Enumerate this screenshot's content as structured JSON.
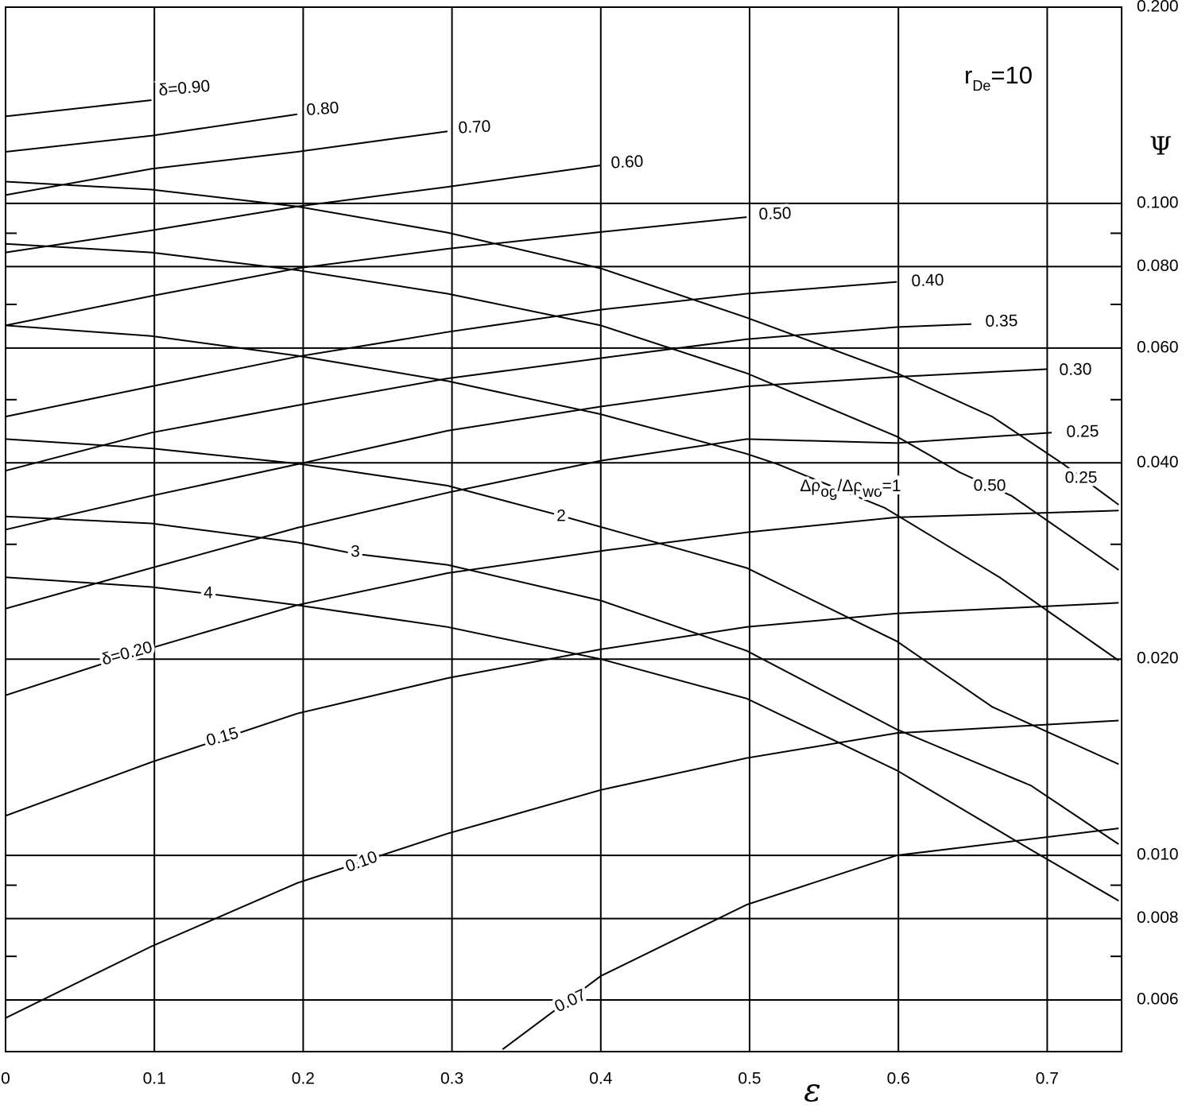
{
  "chart_data": {
    "type": "line",
    "x_label": "ε",
    "y_label": "Ψ",
    "annotation": [
      "r",
      "De",
      "=10"
    ],
    "xlim": [
      0,
      0.75
    ],
    "ylim": [
      0.005,
      0.2
    ],
    "log_y": true,
    "grid": true,
    "xticks": [
      0,
      0.1,
      0.2,
      0.3,
      0.4,
      0.5,
      0.6,
      0.7
    ],
    "yticks": [
      {
        "value": 0.2,
        "label": "0.200"
      },
      {
        "value": 0.1,
        "label": "0.100"
      },
      {
        "value": 0.08,
        "label": "0.080"
      },
      {
        "value": 0.06,
        "label": "0.060"
      },
      {
        "value": 0.04,
        "label": "0.040"
      },
      {
        "value": 0.02,
        "label": "0.020"
      },
      {
        "value": 0.01,
        "label": "0.010"
      },
      {
        "value": 0.008,
        "label": "0.008"
      },
      {
        "value": 0.006,
        "label": "0.006"
      }
    ],
    "y_minor_ticks": [
      0.09,
      0.07,
      0.05,
      0.03,
      0.009,
      0.007
    ],
    "series": [
      {
        "name": "δ=0.90",
        "color": "#000",
        "x": [
          0,
          0.098
        ],
        "values": [
          0.136,
          0.144
        ]
      },
      {
        "name": "0.80",
        "color": "#000",
        "x": [
          0,
          0.098,
          0.196
        ],
        "values": [
          0.12,
          0.127,
          0.137
        ]
      },
      {
        "name": "0.70",
        "color": "#000",
        "x": [
          0,
          0.098,
          0.196,
          0.297
        ],
        "values": [
          0.103,
          0.113,
          0.12,
          0.129
        ]
      },
      {
        "name": "0.60",
        "color": "#000",
        "x": [
          0,
          0.098,
          0.196,
          0.297,
          0.4
        ],
        "values": [
          0.0841,
          0.0909,
          0.0989,
          0.106,
          0.1144
        ]
      },
      {
        "name": "0.50",
        "color": "#000",
        "x": [
          0,
          0.098,
          0.196,
          0.297,
          0.4,
          0.498
        ],
        "values": [
          0.065,
          0.0721,
          0.0795,
          0.0852,
          0.0904,
          0.0953
        ]
      },
      {
        "name": "0.40",
        "color": "#000",
        "x": [
          0,
          0.098,
          0.196,
          0.297,
          0.4,
          0.498,
          0.599
        ],
        "values": [
          0.0471,
          0.0524,
          0.0582,
          0.0635,
          0.0687,
          0.0727,
          0.0758
        ]
      },
      {
        "name": "0.35",
        "color": "#000",
        "x": [
          0,
          0.098,
          0.196,
          0.297,
          0.4,
          0.498,
          0.599,
          0.649
        ],
        "values": [
          0.0389,
          0.0445,
          0.049,
          0.0539,
          0.0579,
          0.0619,
          0.0646,
          0.0653
        ]
      },
      {
        "name": "0.30",
        "color": "#000",
        "x": [
          0,
          0.098,
          0.196,
          0.297,
          0.4,
          0.498,
          0.599,
          0.7
        ],
        "values": [
          0.0316,
          0.0356,
          0.0398,
          0.0448,
          0.0488,
          0.0524,
          0.0542,
          0.0557
        ]
      },
      {
        "name": "0.25",
        "color": "#000",
        "x": [
          0,
          0.098,
          0.196,
          0.297,
          0.4,
          0.498,
          0.599,
          0.703
        ],
        "values": [
          0.0239,
          0.0276,
          0.0318,
          0.036,
          0.0403,
          0.0435,
          0.0429,
          0.0445
        ]
      },
      {
        "name": "δ=0.20",
        "color": "#000",
        "x": [
          0,
          0.098,
          0.196,
          0.297,
          0.4,
          0.498,
          0.599,
          0.748
        ],
        "values": [
          0.0176,
          0.0208,
          0.0242,
          0.0271,
          0.0293,
          0.0313,
          0.033,
          0.0338
        ]
      },
      {
        "name": "0.15",
        "color": "#000",
        "x": [
          0,
          0.098,
          0.196,
          0.297,
          0.4,
          0.498,
          0.599,
          0.748
        ],
        "values": [
          0.0115,
          0.0139,
          0.0165,
          0.0187,
          0.0207,
          0.0224,
          0.0235,
          0.0244
        ]
      },
      {
        "name": "0.10",
        "color": "#000",
        "x": [
          0,
          0.098,
          0.196,
          0.297,
          0.4,
          0.498,
          0.599,
          0.748
        ],
        "values": [
          0.00563,
          0.00725,
          0.00907,
          0.0108,
          0.0126,
          0.0141,
          0.0154,
          0.0161
        ]
      },
      {
        "name": "0.07",
        "color": "#000",
        "x": [
          0.334,
          0.4,
          0.498,
          0.599,
          0.748
        ],
        "values": [
          0.00504,
          0.00653,
          0.0084,
          0.01,
          0.011
        ]
      },
      {
        "name": "0.25",
        "color": "#000",
        "x": [
          0,
          0.098,
          0.196,
          0.297,
          0.4,
          0.498,
          0.599,
          0.663,
          0.711,
          0.748
        ],
        "values": [
          0.108,
          0.105,
          0.0989,
          0.0902,
          0.0795,
          0.0668,
          0.0549,
          0.0471,
          0.0398,
          0.0345
        ]
      },
      {
        "name": "0.50",
        "color": "#000",
        "x": [
          0,
          0.098,
          0.196,
          0.297,
          0.4,
          0.498,
          0.599,
          0.641,
          0.676,
          0.748
        ],
        "values": [
          0.0867,
          0.0841,
          0.079,
          0.0727,
          0.065,
          0.0549,
          0.0439,
          0.0387,
          0.0356,
          0.0274
        ]
      },
      {
        "name": [
          "Δρ",
          "og",
          "/Δρ",
          "wo",
          "=1"
        ],
        "color": "#000",
        "x": [
          0,
          0.098,
          0.196,
          0.297,
          0.4,
          0.498,
          0.519,
          0.591,
          0.668,
          0.748
        ],
        "values": [
          0.065,
          0.0626,
          0.0584,
          0.0534,
          0.0475,
          0.0413,
          0.0398,
          0.0341,
          0.0267,
          0.0199
        ]
      },
      {
        "name": "2",
        "color": "#000",
        "x": [
          0,
          0.098,
          0.196,
          0.297,
          0.373,
          0.498,
          0.599,
          0.663,
          0.748
        ],
        "values": [
          0.0435,
          0.0421,
          0.0399,
          0.0369,
          0.0332,
          0.0276,
          0.0213,
          0.0169,
          0.0138
        ]
      },
      {
        "name": "3",
        "color": "#000",
        "x": [
          0,
          0.098,
          0.196,
          0.235,
          0.297,
          0.4,
          0.498,
          0.599,
          0.689,
          0.748
        ],
        "values": [
          0.0331,
          0.0323,
          0.0302,
          0.029,
          0.0279,
          0.0246,
          0.0206,
          0.0156,
          0.0128,
          0.0104
        ]
      },
      {
        "name": "4",
        "color": "#000",
        "x": [
          0,
          0.098,
          0.136,
          0.196,
          0.297,
          0.4,
          0.498,
          0.599,
          0.689,
          0.748
        ],
        "values": [
          0.0267,
          0.0258,
          0.0252,
          0.0242,
          0.0224,
          0.02,
          0.0174,
          0.0135,
          0.0102,
          0.00852
        ]
      }
    ]
  }
}
